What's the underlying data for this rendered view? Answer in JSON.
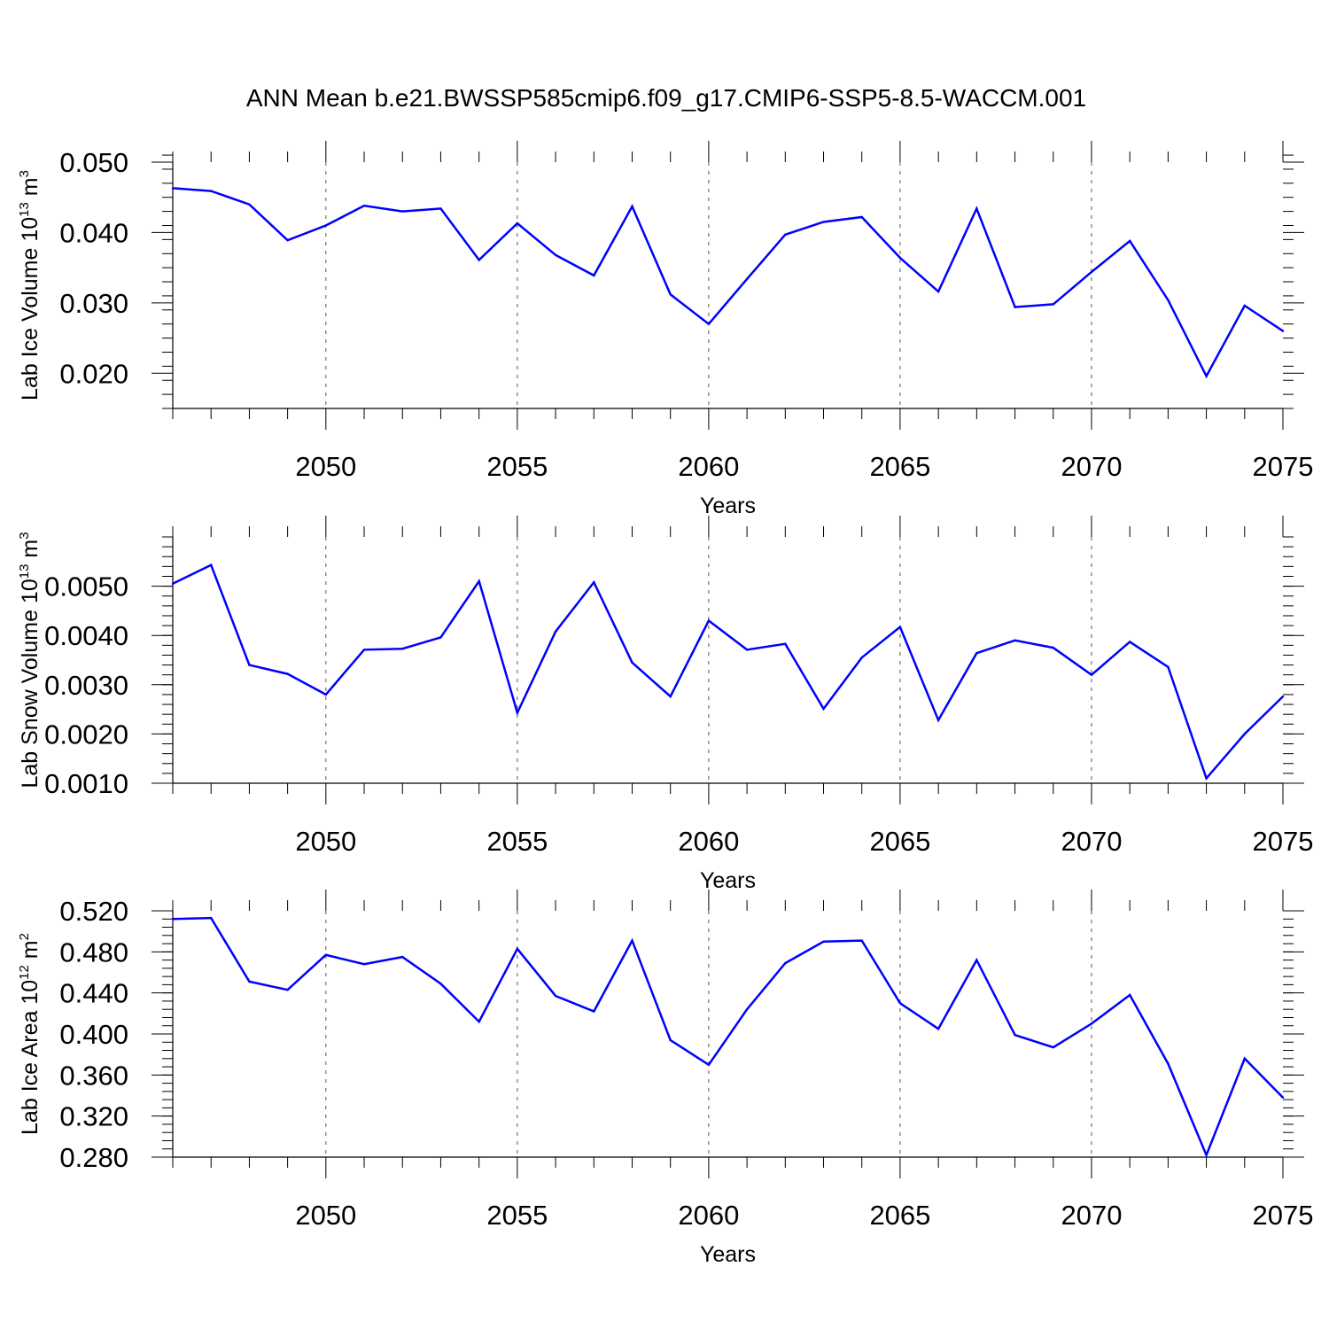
{
  "title": "ANN Mean b.e21.BWSSP585cmip6.f09_g17.CMIP6-SSP5-8.5-WACCM.001",
  "chart_data": [
    {
      "type": "line",
      "ylabel": "Lab Ice Volume 10",
      "ylabel_sup": "13",
      "ylabel_unit": " m",
      "ylabel_unit_sup": "3",
      "xlabel": "Years",
      "xlim": [
        2046,
        2075
      ],
      "ylim": [
        0.015,
        0.05
      ],
      "yticks": [
        0.02,
        0.03,
        0.04,
        0.05
      ],
      "ytick_labels": [
        "0.020",
        "0.030",
        "0.040",
        "0.050"
      ],
      "xticks": [
        2050,
        2055,
        2060,
        2065,
        2070,
        2075
      ],
      "xtick_labels": [
        "2050",
        "2055",
        "2060",
        "2065",
        "2070",
        "2075"
      ],
      "grid": "vertical dashed at major x ticks",
      "line_color": "#0000ff",
      "x": [
        2046,
        2047,
        2048,
        2049,
        2050,
        2051,
        2052,
        2053,
        2054,
        2055,
        2056,
        2057,
        2058,
        2059,
        2060,
        2061,
        2062,
        2063,
        2064,
        2065,
        2066,
        2067,
        2068,
        2069,
        2070,
        2071,
        2072,
        2073,
        2074,
        2075
      ],
      "values": [
        0.0463,
        0.0459,
        0.044,
        0.0389,
        0.041,
        0.0438,
        0.043,
        0.0434,
        0.0361,
        0.0413,
        0.0368,
        0.0339,
        0.0437,
        0.0312,
        0.027,
        0.0334,
        0.0397,
        0.0415,
        0.0422,
        0.0364,
        0.0316,
        0.0434,
        0.0294,
        0.0298,
        0.0344,
        0.0388,
        0.0304,
        0.0196,
        0.0296,
        0.026
      ]
    },
    {
      "type": "line",
      "ylabel": "Lab Snow Volume 10",
      "ylabel_sup": "13",
      "ylabel_unit": " m",
      "ylabel_unit_sup": "3",
      "xlabel": "Years",
      "xlim": [
        2046,
        2075
      ],
      "ylim": [
        0.001,
        0.006
      ],
      "yticks": [
        0.001,
        0.002,
        0.003,
        0.004,
        0.005
      ],
      "ytick_labels": [
        "0.0010",
        "0.0020",
        "0.0030",
        "0.0040",
        "0.0050"
      ],
      "xticks": [
        2050,
        2055,
        2060,
        2065,
        2070,
        2075
      ],
      "xtick_labels": [
        "2050",
        "2055",
        "2060",
        "2065",
        "2070",
        "2075"
      ],
      "grid": "vertical dashed at major x ticks",
      "line_color": "#0000ff",
      "x": [
        2046,
        2047,
        2048,
        2049,
        2050,
        2051,
        2052,
        2053,
        2054,
        2055,
        2056,
        2057,
        2058,
        2059,
        2060,
        2061,
        2062,
        2063,
        2064,
        2065,
        2066,
        2067,
        2068,
        2069,
        2070,
        2071,
        2072,
        2073,
        2074,
        2075
      ],
      "values": [
        0.00505,
        0.00543,
        0.0034,
        0.00322,
        0.0028,
        0.00371,
        0.00373,
        0.00396,
        0.0051,
        0.00243,
        0.00408,
        0.00508,
        0.00345,
        0.00276,
        0.0043,
        0.00371,
        0.00383,
        0.00251,
        0.00355,
        0.00417,
        0.00228,
        0.00364,
        0.0039,
        0.00375,
        0.0032,
        0.00387,
        0.00336,
        0.0011,
        0.002,
        0.00276
      ]
    },
    {
      "type": "line",
      "ylabel": "Lab Ice Area 10",
      "ylabel_sup": "12",
      "ylabel_unit": " m",
      "ylabel_unit_sup": "2",
      "xlabel": "Years",
      "xlim": [
        2046,
        2075
      ],
      "ylim": [
        0.28,
        0.52
      ],
      "yticks": [
        0.28,
        0.32,
        0.36,
        0.4,
        0.44,
        0.48,
        0.52
      ],
      "ytick_labels": [
        "0.280",
        "0.320",
        "0.360",
        "0.400",
        "0.440",
        "0.480",
        "0.520"
      ],
      "xticks": [
        2050,
        2055,
        2060,
        2065,
        2070,
        2075
      ],
      "xtick_labels": [
        "2050",
        "2055",
        "2060",
        "2065",
        "2070",
        "2075"
      ],
      "grid": "vertical dashed at major x ticks",
      "line_color": "#0000ff",
      "x": [
        2046,
        2047,
        2048,
        2049,
        2050,
        2051,
        2052,
        2053,
        2054,
        2055,
        2056,
        2057,
        2058,
        2059,
        2060,
        2061,
        2062,
        2063,
        2064,
        2065,
        2066,
        2067,
        2068,
        2069,
        2070,
        2071,
        2072,
        2073,
        2074,
        2075
      ],
      "values": [
        0.512,
        0.513,
        0.451,
        0.443,
        0.477,
        0.468,
        0.475,
        0.449,
        0.412,
        0.483,
        0.437,
        0.422,
        0.491,
        0.394,
        0.37,
        0.424,
        0.469,
        0.49,
        0.491,
        0.43,
        0.405,
        0.472,
        0.399,
        0.387,
        0.41,
        0.438,
        0.371,
        0.282,
        0.376,
        0.338
      ]
    }
  ]
}
